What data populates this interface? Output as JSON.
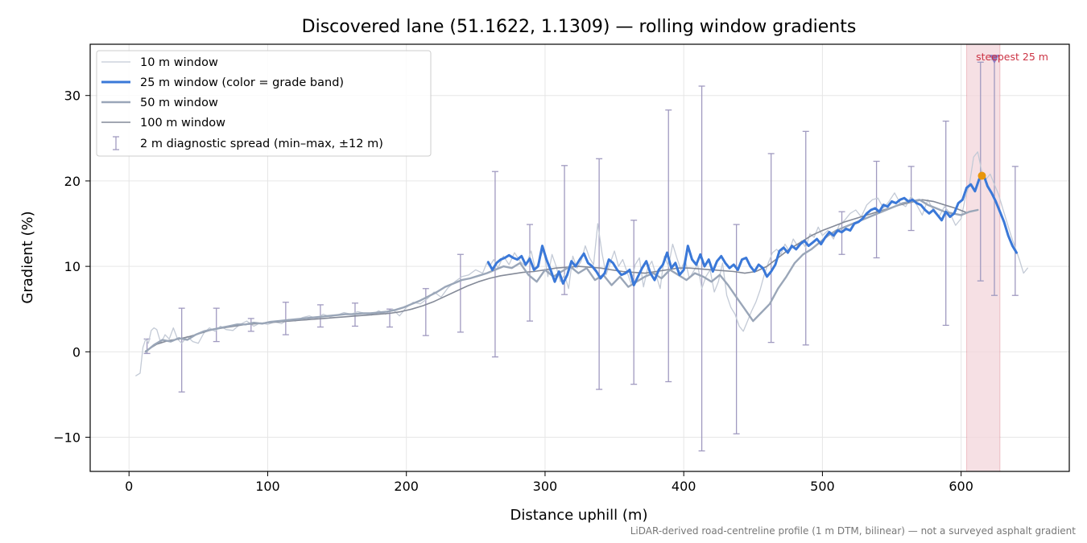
{
  "chart_data": {
    "type": "line",
    "title": "Discovered lane (51.1622, 1.1309) — rolling window gradients",
    "xlabel": "Distance uphill (m)",
    "ylabel": "Gradient (%)",
    "xlim": [
      -28,
      678
    ],
    "ylim": [
      -14,
      36
    ],
    "x_ticks": [
      0,
      100,
      200,
      300,
      400,
      500,
      600
    ],
    "x_tick_labels": [
      "0",
      "100",
      "200",
      "300",
      "400",
      "500",
      "600"
    ],
    "y_ticks": [
      -10,
      0,
      10,
      20,
      30
    ],
    "y_tick_labels": [
      "−10",
      "0",
      "10",
      "20",
      "30"
    ],
    "grid": true,
    "legend_position": "upper-left",
    "footnote": "LiDAR-derived road-centreline profile (1 m DTM, bilinear) — not a surveyed asphalt gradient",
    "highlight": {
      "x_start": 604,
      "x_end": 628,
      "label": "steepest 25 m",
      "color": "#cc3344"
    },
    "colors": {
      "w10": "#c3cad6",
      "w25": "#3a78d8",
      "w50": "#9aa6b8",
      "w100": "#848a98",
      "diagnostic": "#a09ac0",
      "highlight": "#f3d6db",
      "peak_marker": "#e8960c",
      "steep_marker": "#8e7cc3"
    },
    "series": [
      {
        "key": "w10",
        "name": "10 m window",
        "x": [
          5,
          8,
          10,
          12,
          14,
          16,
          18,
          20,
          23,
          26,
          29,
          32,
          35,
          38,
          42,
          46,
          50,
          54,
          58,
          62,
          66,
          70,
          75,
          80,
          85,
          90,
          95,
          100,
          105,
          110,
          115,
          120,
          125,
          130,
          135,
          140,
          145,
          150,
          155,
          160,
          165,
          170,
          175,
          180,
          185,
          190,
          195,
          200,
          205,
          210,
          215,
          220,
          225,
          230,
          235,
          240,
          245,
          250,
          255,
          258,
          260,
          263,
          266,
          270,
          274,
          278,
          282,
          286,
          290,
          293,
          296,
          299,
          302,
          305,
          308,
          311,
          314,
          317,
          320,
          323,
          326,
          329,
          332,
          335,
          338,
          341,
          344,
          347,
          350,
          353,
          356,
          359,
          362,
          365,
          368,
          371,
          374,
          377,
          380,
          383,
          386,
          389,
          392,
          395,
          398,
          401,
          404,
          407,
          410,
          413,
          416,
          419,
          422,
          425,
          428,
          431,
          434,
          437,
          440,
          443,
          446,
          449,
          452,
          455,
          458,
          461,
          464,
          467,
          470,
          473,
          476,
          479,
          482,
          485,
          488,
          491,
          494,
          497,
          500,
          504,
          508,
          512,
          516,
          520,
          524,
          528,
          532,
          536,
          540,
          544,
          548,
          552,
          556,
          560,
          564,
          568,
          572,
          576,
          580,
          584,
          588,
          592,
          596,
          600,
          603,
          606,
          609,
          612,
          615,
          618,
          621,
          624,
          627,
          630,
          633,
          636,
          639,
          642,
          645,
          648
        ],
        "y": [
          -2.8,
          -2.5,
          0.5,
          1.5,
          1.0,
          2.5,
          2.8,
          2.6,
          1.0,
          2.0,
          1.5,
          2.8,
          1.5,
          1.0,
          1.8,
          1.2,
          1.0,
          2.2,
          2.8,
          2.4,
          3.0,
          2.6,
          2.5,
          3.2,
          3.6,
          3.0,
          3.4,
          3.2,
          3.5,
          3.3,
          3.8,
          3.6,
          4.0,
          4.2,
          3.9,
          4.4,
          4.1,
          4.3,
          4.6,
          4.4,
          4.7,
          4.5,
          4.3,
          4.8,
          4.4,
          5.0,
          4.2,
          5.2,
          5.8,
          5.6,
          6.2,
          7.0,
          6.4,
          7.5,
          8.2,
          8.8,
          9.0,
          9.6,
          9.2,
          10.4,
          10.0,
          10.8,
          9.8,
          11.2,
          10.2,
          11.6,
          10.6,
          10.0,
          11.8,
          9.6,
          10.8,
          12.0,
          8.8,
          11.4,
          10.0,
          8.2,
          9.0,
          7.4,
          11.2,
          9.8,
          10.6,
          12.4,
          11.0,
          10.2,
          15.0,
          11.6,
          9.0,
          10.4,
          11.8,
          10.0,
          10.8,
          9.4,
          8.0,
          10.2,
          11.0,
          7.6,
          9.8,
          10.6,
          9.0,
          7.4,
          11.2,
          10.0,
          12.6,
          11.0,
          9.6,
          10.8,
          8.6,
          9.4,
          10.2,
          7.4,
          8.8,
          9.6,
          7.0,
          8.2,
          10.4,
          6.6,
          5.2,
          4.4,
          3.0,
          2.4,
          3.6,
          4.8,
          5.8,
          7.2,
          9.0,
          10.4,
          11.6,
          12.0,
          11.4,
          12.6,
          11.8,
          13.2,
          12.4,
          13.0,
          12.2,
          13.8,
          13.4,
          14.6,
          13.6,
          14.2,
          13.2,
          14.8,
          15.4,
          16.2,
          16.6,
          15.8,
          17.2,
          17.8,
          18.0,
          16.8,
          17.6,
          18.6,
          17.4,
          17.0,
          18.2,
          17.2,
          16.0,
          17.8,
          16.6,
          15.8,
          17.0,
          16.2,
          14.8,
          15.6,
          18.0,
          19.6,
          22.8,
          23.4,
          21.0,
          20.2,
          20.8,
          19.6,
          18.4,
          16.8,
          15.2,
          13.6,
          12.2,
          10.8,
          9.2,
          9.8
        ],
        "width": 1.3
      },
      {
        "key": "w25",
        "name": "25 m window (color = grade band)",
        "x": [
          259,
          262,
          265,
          268,
          271,
          274,
          277,
          280,
          283,
          286,
          289,
          292,
          295,
          298,
          301,
          304,
          307,
          310,
          313,
          316,
          319,
          322,
          325,
          328,
          331,
          334,
          337,
          340,
          343,
          346,
          349,
          352,
          355,
          358,
          361,
          364,
          367,
          370,
          373,
          376,
          379,
          382,
          385,
          388,
          391,
          394,
          397,
          400,
          403,
          406,
          409,
          412,
          415,
          418,
          421,
          424,
          427,
          430,
          433,
          436,
          439,
          442,
          445,
          448,
          451,
          454,
          457,
          460,
          463,
          466,
          469,
          472,
          475,
          478,
          481,
          484,
          487,
          490,
          493,
          496,
          499,
          502,
          505,
          508,
          511,
          514,
          517,
          520,
          523,
          526,
          529,
          532,
          535,
          538,
          541,
          544,
          547,
          550,
          553,
          556,
          559,
          562,
          565,
          568,
          571,
          574,
          577,
          580,
          583,
          586,
          589,
          592,
          595,
          598,
          601,
          604,
          607,
          610,
          613,
          616,
          619,
          622,
          625,
          628,
          631,
          634,
          637,
          640
        ],
        "y": [
          10.5,
          9.6,
          10.4,
          10.8,
          11.0,
          11.3,
          11.0,
          10.8,
          11.2,
          10.2,
          10.9,
          9.6,
          10.0,
          12.4,
          10.8,
          9.6,
          8.2,
          9.4,
          8.0,
          9.0,
          10.6,
          10.0,
          10.8,
          11.5,
          10.4,
          10.0,
          9.4,
          8.6,
          9.2,
          10.8,
          10.4,
          9.6,
          9.0,
          9.2,
          9.6,
          7.8,
          8.8,
          9.8,
          10.6,
          9.2,
          8.4,
          9.6,
          10.2,
          11.6,
          9.8,
          10.4,
          9.0,
          9.6,
          12.4,
          10.8,
          10.2,
          11.4,
          10.0,
          10.8,
          9.4,
          10.6,
          11.2,
          10.4,
          9.8,
          10.2,
          9.6,
          10.8,
          11.0,
          10.0,
          9.4,
          10.2,
          9.8,
          8.8,
          9.4,
          10.2,
          11.8,
          12.2,
          11.6,
          12.4,
          12.0,
          12.6,
          13.0,
          12.4,
          12.8,
          13.2,
          12.6,
          13.4,
          14.0,
          13.6,
          14.2,
          14.0,
          14.4,
          14.2,
          15.0,
          15.2,
          15.6,
          16.2,
          16.6,
          16.8,
          16.4,
          17.2,
          17.0,
          17.6,
          17.4,
          17.8,
          18.0,
          17.6,
          17.8,
          17.4,
          17.2,
          16.6,
          16.2,
          16.6,
          16.0,
          15.4,
          16.4,
          15.8,
          16.2,
          17.4,
          17.8,
          19.2,
          19.6,
          18.8,
          20.2,
          20.8,
          19.4,
          18.6,
          17.6,
          16.4,
          15.2,
          13.6,
          12.4,
          11.6
        ],
        "width": 3
      },
      {
        "key": "w50",
        "name": "50 m window",
        "x": [
          12,
          18,
          24,
          30,
          36,
          42,
          48,
          54,
          60,
          66,
          72,
          78,
          84,
          90,
          96,
          102,
          108,
          114,
          120,
          126,
          132,
          138,
          144,
          150,
          156,
          162,
          168,
          174,
          180,
          186,
          192,
          198,
          204,
          210,
          216,
          222,
          228,
          234,
          240,
          246,
          252,
          258,
          264,
          270,
          276,
          282,
          288,
          294,
          300,
          306,
          312,
          318,
          324,
          330,
          336,
          342,
          348,
          354,
          360,
          366,
          372,
          378,
          384,
          390,
          396,
          402,
          408,
          414,
          420,
          426,
          432,
          438,
          444,
          450,
          456,
          462,
          468,
          474,
          480,
          486,
          492,
          498,
          504,
          510,
          516,
          522,
          528,
          534,
          540,
          546,
          552,
          558,
          564,
          570,
          576,
          582,
          588,
          594,
          600,
          606,
          612
        ],
        "y": [
          0.0,
          0.8,
          1.4,
          1.2,
          1.6,
          1.4,
          2.0,
          2.4,
          2.6,
          2.8,
          3.0,
          3.2,
          3.2,
          3.4,
          3.3,
          3.5,
          3.6,
          3.7,
          3.8,
          3.9,
          4.0,
          4.1,
          4.2,
          4.3,
          4.4,
          4.4,
          4.5,
          4.5,
          4.6,
          4.7,
          4.9,
          5.2,
          5.6,
          6.0,
          6.5,
          7.0,
          7.6,
          8.0,
          8.4,
          8.6,
          8.9,
          9.2,
          9.6,
          10.0,
          9.8,
          10.4,
          9.0,
          8.2,
          9.6,
          8.8,
          9.4,
          10.0,
          9.2,
          9.8,
          8.4,
          9.0,
          7.8,
          8.8,
          7.6,
          8.2,
          8.8,
          9.2,
          8.6,
          9.6,
          9.0,
          8.4,
          9.2,
          8.8,
          8.2,
          9.0,
          7.8,
          6.4,
          5.0,
          3.6,
          4.6,
          5.6,
          7.4,
          8.8,
          10.4,
          11.4,
          12.0,
          12.8,
          13.6,
          14.2,
          14.6,
          15.0,
          15.4,
          15.8,
          16.2,
          16.6,
          17.0,
          17.4,
          17.6,
          17.8,
          17.2,
          16.8,
          16.4,
          16.2,
          16.0,
          16.4,
          16.6
        ],
        "width": 2.4
      },
      {
        "key": "w100",
        "name": "100 m window",
        "x": [
          12,
          20,
          28,
          36,
          44,
          52,
          60,
          68,
          76,
          84,
          92,
          100,
          108,
          116,
          124,
          132,
          140,
          148,
          156,
          164,
          172,
          180,
          188,
          196,
          204,
          212,
          220,
          228,
          236,
          244,
          252,
          260,
          268,
          276,
          284,
          292,
          300,
          308,
          316,
          324,
          332,
          340,
          348,
          356,
          364,
          372,
          380,
          388,
          396,
          404,
          412,
          420,
          428,
          436,
          444,
          452,
          460,
          468,
          476,
          484,
          492,
          500,
          508,
          516,
          524,
          532,
          540,
          548,
          556,
          564,
          572,
          580,
          588,
          596,
          604
        ],
        "y": [
          0.1,
          0.9,
          1.3,
          1.5,
          1.8,
          2.2,
          2.6,
          2.8,
          3.0,
          3.2,
          3.3,
          3.4,
          3.5,
          3.6,
          3.7,
          3.8,
          3.9,
          4.0,
          4.1,
          4.2,
          4.3,
          4.4,
          4.5,
          4.7,
          5.0,
          5.4,
          5.9,
          6.5,
          7.1,
          7.7,
          8.2,
          8.6,
          8.9,
          9.1,
          9.3,
          9.4,
          9.6,
          9.8,
          9.9,
          10.0,
          9.9,
          9.8,
          9.6,
          9.4,
          9.3,
          9.2,
          9.4,
          9.6,
          9.8,
          9.8,
          9.7,
          9.6,
          9.5,
          9.4,
          9.2,
          9.4,
          10.0,
          11.0,
          12.0,
          12.8,
          13.6,
          14.2,
          14.7,
          15.2,
          15.6,
          16.0,
          16.4,
          16.8,
          17.2,
          17.5,
          17.8,
          17.6,
          17.2,
          16.8,
          16.3
        ],
        "width": 1.6
      }
    ],
    "diagnostic_spread": {
      "name": "2 m diagnostic spread (min–max, ±12 m)",
      "x": [
        13,
        38,
        63,
        88,
        113,
        138,
        163,
        188,
        214,
        239,
        264,
        289,
        314,
        339,
        364,
        389,
        413,
        438,
        463,
        488,
        514,
        539,
        564,
        589,
        614,
        624,
        639
      ],
      "low": [
        -0.2,
        -4.7,
        1.2,
        2.4,
        2.0,
        2.9,
        3.0,
        2.9,
        1.9,
        2.3,
        -0.6,
        3.6,
        6.7,
        -4.4,
        -3.8,
        -3.5,
        -11.6,
        -9.6,
        1.1,
        0.8,
        11.4,
        11.0,
        14.2,
        3.1,
        8.3,
        6.6,
        6.6
      ],
      "high": [
        1.5,
        5.1,
        5.1,
        3.9,
        5.8,
        5.5,
        5.7,
        5.0,
        7.4,
        11.4,
        21.1,
        14.9,
        21.8,
        22.6,
        15.4,
        28.3,
        31.1,
        14.9,
        23.2,
        25.8,
        16.4,
        22.3,
        21.7,
        27.0,
        33.9,
        34.2,
        21.7
      ]
    },
    "markers": [
      {
        "name": "peak-25m",
        "x": 615,
        "y": 20.6,
        "color": "#e8960c"
      },
      {
        "name": "steepest-point",
        "x": 624,
        "y": 34.2,
        "color": "#8e7cc3"
      }
    ]
  }
}
